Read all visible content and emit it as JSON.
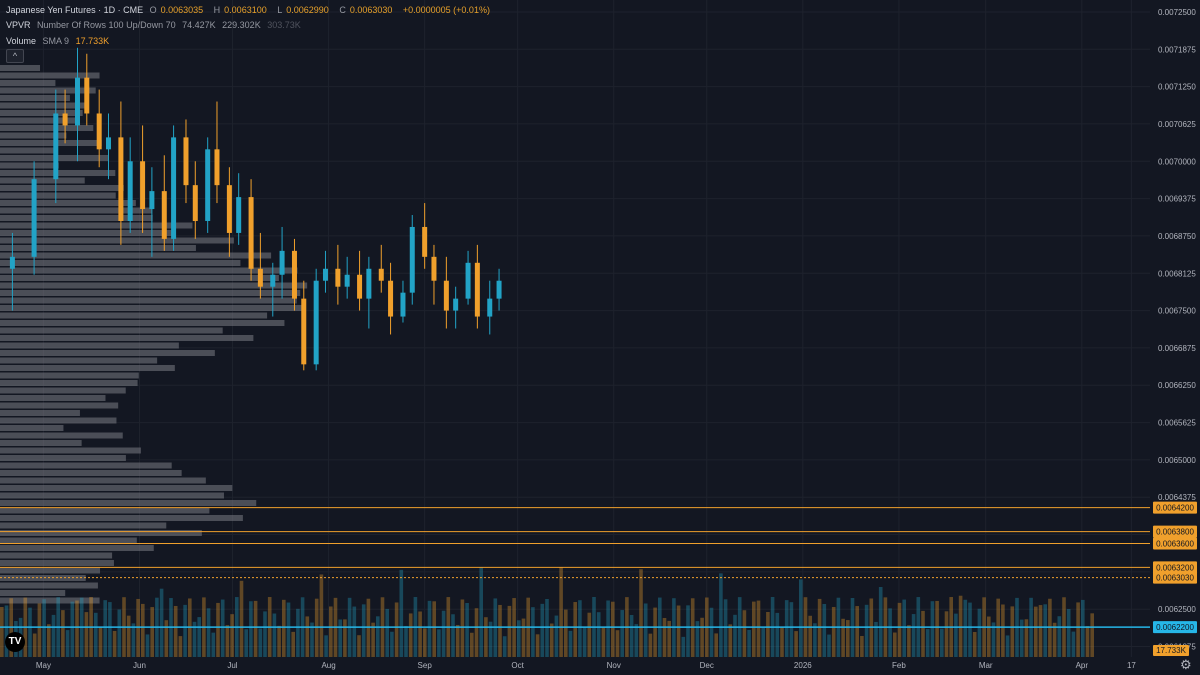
{
  "legend": {
    "symbol": "Japanese Yen Futures · 1D · CME",
    "open_label": "O",
    "open": "0.0063035",
    "high_label": "H",
    "high": "0.0063100",
    "low_label": "L",
    "low": "0.0062990",
    "close_label": "C",
    "close": "0.0063030",
    "change": "+0.0000005 (+0.01%)",
    "vpvr_name": "VPVR",
    "vpvr_params": "Number Of Rows 100 Up/Down 70",
    "vpvr_up": "74.427K",
    "vpvr_down": "229.302K",
    "vpvr_total": "303.73K",
    "volume_name": "Volume",
    "volume_params": "SMA 9",
    "volume_value": "17.733K"
  },
  "colors": {
    "background": "#131722",
    "grid": "#1e222d",
    "up": "#22a3c6",
    "down": "#f0a02c",
    "axis_text": "#b2b5be",
    "level_line": "#f0a02c",
    "current_price": "#26b6e8",
    "profile": "#7a7c84"
  },
  "chart_data": {
    "type": "candlestick",
    "title": "Japanese Yen Futures · 1D · CME",
    "y_ticks": [
      "0.0072500",
      "0.0071875",
      "0.0071250",
      "0.0070625",
      "0.0070000",
      "0.0069375",
      "0.0068750",
      "0.0068125",
      "0.0067500",
      "0.0066875",
      "0.0066250",
      "0.0065625",
      "0.0065000",
      "0.0064375",
      "0.0063750",
      "0.0063125",
      "0.0062500",
      "0.0061875"
    ],
    "ylim": [
      0.00617,
      0.00727
    ],
    "x_labels": [
      {
        "text": "May",
        "date": "2025-05-01"
      },
      {
        "text": "Jun",
        "date": "2025-06-01"
      },
      {
        "text": "Jul",
        "date": "2025-07-01"
      },
      {
        "text": "Aug",
        "date": "2025-08-01"
      },
      {
        "text": "Sep",
        "date": "2025-09-01"
      },
      {
        "text": "Oct",
        "date": "2025-10-01"
      },
      {
        "text": "Nov",
        "date": "2025-11-01"
      },
      {
        "text": "Dec",
        "date": "2025-12-01"
      },
      {
        "text": "2026",
        "date": "2026-01-01"
      },
      {
        "text": "Feb",
        "date": "2026-02-01"
      },
      {
        "text": "Mar",
        "date": "2026-03-01"
      },
      {
        "text": "Apr",
        "date": "2026-04-01"
      },
      {
        "text": "17",
        "date": "2026-04-17"
      }
    ],
    "date_range": [
      "2025-04-17",
      "2026-04-23"
    ],
    "price_levels": [
      {
        "label": "0.0064200",
        "value": 0.00642
      },
      {
        "label": "0.0063800",
        "value": 0.00638
      },
      {
        "label": "0.0063600",
        "value": 0.00636
      },
      {
        "label": "0.0063200",
        "value": 0.00632
      },
      {
        "label": "0.0063030",
        "value": 0.006303,
        "dotted": true
      },
      {
        "label": "0.0062200",
        "value": 0.00622,
        "current": true
      }
    ],
    "volume_badge": "17.733K",
    "candles": [
      [
        "2025-04-21",
        0.00682,
        0.00688,
        0.00675,
        0.00684
      ],
      [
        "2025-04-28",
        0.00684,
        0.007,
        0.00681,
        0.00697
      ],
      [
        "2025-05-05",
        0.00697,
        0.00712,
        0.00693,
        0.00708
      ],
      [
        "2025-05-08",
        0.00708,
        0.00712,
        0.00703,
        0.00706
      ],
      [
        "2025-05-12",
        0.00706,
        0.00719,
        0.007,
        0.00714
      ],
      [
        "2025-05-15",
        0.00714,
        0.00718,
        0.00706,
        0.00708
      ],
      [
        "2025-05-19",
        0.00708,
        0.00712,
        0.00699,
        0.00702
      ],
      [
        "2025-05-22",
        0.00702,
        0.00708,
        0.00697,
        0.00704
      ],
      [
        "2025-05-26",
        0.00704,
        0.0071,
        0.00686,
        0.0069
      ],
      [
        "2025-05-29",
        0.0069,
        0.00704,
        0.00688,
        0.007
      ],
      [
        "2025-06-02",
        0.007,
        0.00706,
        0.00688,
        0.00692
      ],
      [
        "2025-06-05",
        0.00692,
        0.00699,
        0.00684,
        0.00695
      ],
      [
        "2025-06-09",
        0.00695,
        0.00701,
        0.00685,
        0.00687
      ],
      [
        "2025-06-12",
        0.00687,
        0.00706,
        0.00685,
        0.00704
      ],
      [
        "2025-06-16",
        0.00704,
        0.00707,
        0.00693,
        0.00696
      ],
      [
        "2025-06-19",
        0.00696,
        0.007,
        0.00687,
        0.0069
      ],
      [
        "2025-06-23",
        0.0069,
        0.00704,
        0.00688,
        0.00702
      ],
      [
        "2025-06-26",
        0.00702,
        0.0071,
        0.00693,
        0.00696
      ],
      [
        "2025-06-30",
        0.00696,
        0.00699,
        0.00684,
        0.00688
      ],
      [
        "2025-07-03",
        0.00688,
        0.00698,
        0.00686,
        0.00694
      ],
      [
        "2025-07-07",
        0.00694,
        0.00697,
        0.0068,
        0.00682
      ],
      [
        "2025-07-10",
        0.00682,
        0.00688,
        0.00677,
        0.00679
      ],
      [
        "2025-07-14",
        0.00679,
        0.00683,
        0.00674,
        0.00681
      ],
      [
        "2025-07-17",
        0.00681,
        0.00689,
        0.00677,
        0.00685
      ],
      [
        "2025-07-21",
        0.00685,
        0.00687,
        0.00675,
        0.00677
      ],
      [
        "2025-07-24",
        0.00677,
        0.0068,
        0.00665,
        0.00666
      ],
      [
        "2025-07-28",
        0.00666,
        0.00682,
        0.00665,
        0.0068
      ],
      [
        "2025-07-31",
        0.0068,
        0.00685,
        0.00678,
        0.00682
      ],
      [
        "2025-08-04",
        0.00682,
        0.00686,
        0.00676,
        0.00679
      ],
      [
        "2025-08-07",
        0.00679,
        0.00684,
        0.00677,
        0.00681
      ],
      [
        "2025-08-11",
        0.00681,
        0.00685,
        0.00675,
        0.00677
      ],
      [
        "2025-08-14",
        0.00677,
        0.00684,
        0.00672,
        0.00682
      ],
      [
        "2025-08-18",
        0.00682,
        0.00686,
        0.00678,
        0.0068
      ],
      [
        "2025-08-21",
        0.0068,
        0.00683,
        0.00671,
        0.00674
      ],
      [
        "2025-08-25",
        0.00674,
        0.0068,
        0.00673,
        0.00678
      ],
      [
        "2025-08-28",
        0.00678,
        0.00691,
        0.00676,
        0.00689
      ],
      [
        "2025-09-01",
        0.00689,
        0.00693,
        0.00682,
        0.00684
      ],
      [
        "2025-09-04",
        0.00684,
        0.00686,
        0.00676,
        0.0068
      ],
      [
        "2025-09-08",
        0.0068,
        0.00684,
        0.00672,
        0.00675
      ],
      [
        "2025-09-11",
        0.00675,
        0.00679,
        0.00672,
        0.00677
      ],
      [
        "2025-09-15",
        0.00677,
        0.00685,
        0.00676,
        0.00683
      ],
      [
        "2025-09-18",
        0.00683,
        0.00686,
        0.00672,
        0.00674
      ],
      [
        "2025-09-22",
        0.00674,
        0.0068,
        0.00671,
        0.00677
      ],
      [
        "2025-09-25",
        0.00677,
        0.00682,
        0.00675,
        0.0068
      ]
    ],
    "volume_bars": [
      [
        "2025-05",
        25
      ],
      [
        "2025-06",
        30
      ],
      [
        "2025-07",
        28
      ],
      [
        "2025-08",
        22
      ],
      [
        "2025-09",
        24
      ],
      [
        "2025-10",
        26
      ],
      [
        "2025-11",
        27
      ],
      [
        "2025-12",
        30
      ],
      [
        "2026-01",
        35
      ],
      [
        "2026-02",
        33
      ],
      [
        "2026-03",
        29
      ],
      [
        "2026-04",
        18
      ]
    ],
    "volume_profile": "Per-row up/down totals are not printed on the chart; the VPVR histogram is reproduced as a drawing only."
  }
}
